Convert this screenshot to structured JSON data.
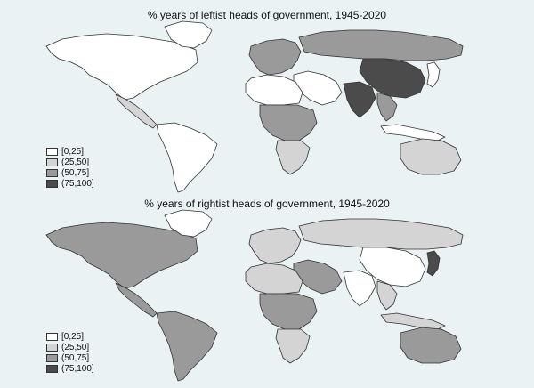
{
  "maps": [
    {
      "id": "leftist",
      "title": "% years of leftist heads of government, 1945-2020",
      "legend": [
        {
          "label": "[0,25]",
          "color": "#ffffff"
        },
        {
          "label": "(25,50]",
          "color": "#d4d4d4"
        },
        {
          "label": "(50,75]",
          "color": "#9a9a9a"
        },
        {
          "label": "(75,100]",
          "color": "#4b4b4b"
        }
      ],
      "regions": {
        "north_america": 0,
        "greenland": 0,
        "central_america": 1,
        "south_america": 0,
        "europe_west": 2,
        "russia": 2,
        "middle_east": 0,
        "africa_north": 0,
        "africa_central": 2,
        "africa_south": 1,
        "china": 3,
        "india": 3,
        "southeast_asia": 2,
        "japan": 0,
        "australia": 1,
        "indonesia": 0
      }
    },
    {
      "id": "rightist",
      "title": "% years of rightist heads of government, 1945-2020",
      "legend": [
        {
          "label": "[0,25]",
          "color": "#ffffff"
        },
        {
          "label": "(25,50]",
          "color": "#d4d4d4"
        },
        {
          "label": "(50,75]",
          "color": "#9a9a9a"
        },
        {
          "label": "(75,100]",
          "color": "#4b4b4b"
        }
      ],
      "regions": {
        "north_america": 2,
        "greenland": 0,
        "central_america": 2,
        "south_america": 2,
        "europe_west": 1,
        "russia": 1,
        "middle_east": 2,
        "africa_north": 1,
        "africa_central": 2,
        "africa_south": 1,
        "china": 0,
        "india": 0,
        "southeast_asia": 1,
        "japan": 3,
        "australia": 2,
        "indonesia": 1
      }
    }
  ]
}
